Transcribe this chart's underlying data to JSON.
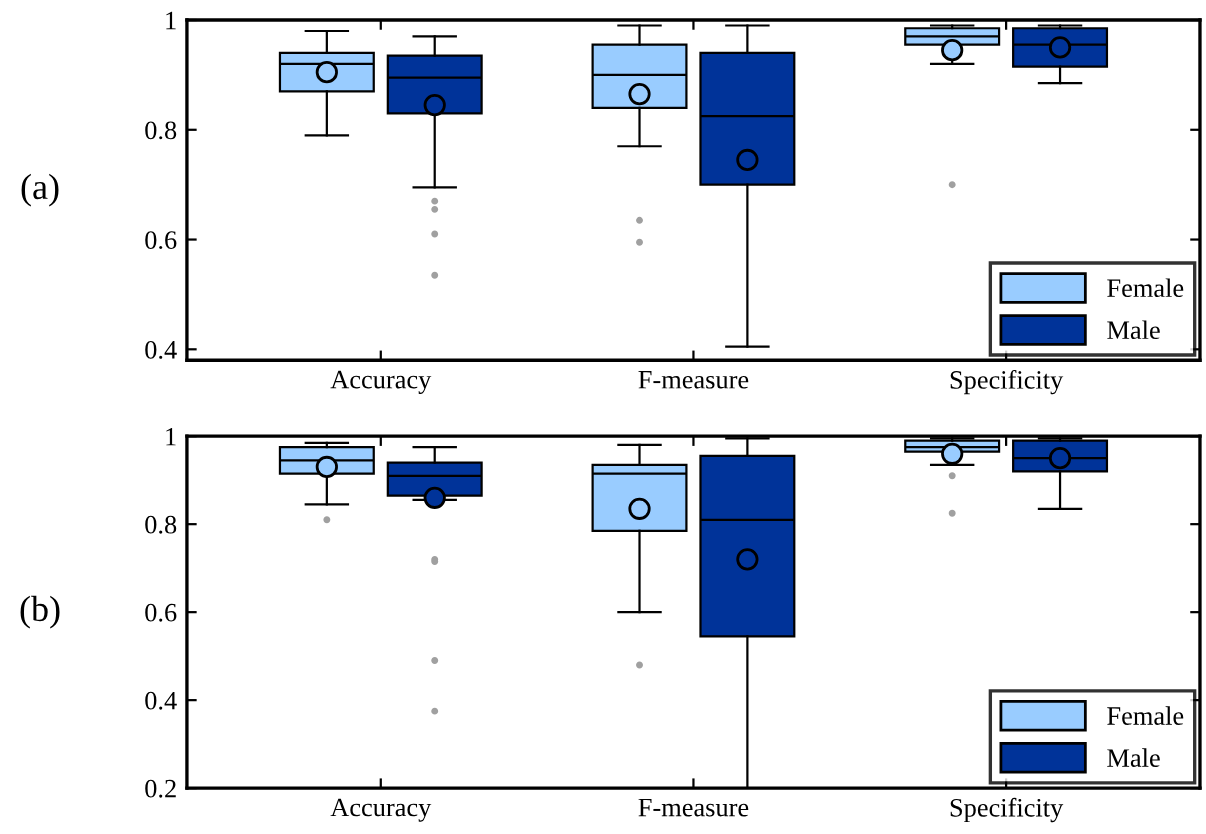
{
  "chart_data": [
    {
      "type": "box",
      "categories": [
        "Accuracy",
        "F-measure",
        "Specificity"
      ],
      "ylim": [
        0.38,
        1
      ],
      "yticks": [
        0.4,
        0.6,
        0.8,
        1
      ],
      "legend": "bottom right",
      "grid": false,
      "annotations": [
        "(a)"
      ],
      "series": [
        {
          "name": "Female",
          "color": "#99ccff",
          "boxes": [
            {
              "low": 0.79,
              "q1": 0.87,
              "median": 0.92,
              "q3": 0.94,
              "high": 0.98,
              "mean": 0.905
            },
            {
              "low": 0.77,
              "q1": 0.84,
              "median": 0.9,
              "q3": 0.955,
              "high": 0.99,
              "mean": 0.865,
              "outliers": [
                0.635,
                0.595
              ]
            },
            {
              "low": 0.92,
              "q1": 0.955,
              "median": 0.97,
              "q3": 0.985,
              "high": 0.99,
              "mean": 0.945,
              "outliers": [
                0.7
              ]
            }
          ]
        },
        {
          "name": "Male",
          "color": "#003399",
          "boxes": [
            {
              "low": 0.695,
              "q1": 0.83,
              "median": 0.895,
              "q3": 0.935,
              "high": 0.97,
              "mean": 0.845,
              "outliers": [
                0.67,
                0.655,
                0.61,
                0.535
              ]
            },
            {
              "low": 0.405,
              "q1": 0.7,
              "median": 0.825,
              "q3": 0.94,
              "high": 0.99,
              "mean": 0.745
            },
            {
              "low": 0.885,
              "q1": 0.915,
              "median": 0.955,
              "q3": 0.985,
              "high": 0.99,
              "mean": 0.95
            }
          ]
        }
      ]
    },
    {
      "type": "box",
      "categories": [
        "Accuracy",
        "F-measure",
        "Specificity"
      ],
      "ylim": [
        0.2,
        1
      ],
      "yticks": [
        0.2,
        0.4,
        0.6,
        0.8,
        1
      ],
      "legend": "bottom right",
      "grid": false,
      "annotations": [
        "(b)"
      ],
      "series": [
        {
          "name": "Female",
          "color": "#99ccff",
          "boxes": [
            {
              "low": 0.845,
              "q1": 0.915,
              "median": 0.945,
              "q3": 0.975,
              "high": 0.985,
              "mean": 0.93,
              "outliers": [
                0.81
              ]
            },
            {
              "low": 0.6,
              "q1": 0.785,
              "median": 0.915,
              "q3": 0.935,
              "high": 0.98,
              "mean": 0.835,
              "outliers": [
                0.48
              ]
            },
            {
              "low": 0.935,
              "q1": 0.965,
              "median": 0.975,
              "q3": 0.99,
              "high": 0.995,
              "mean": 0.96,
              "outliers": [
                0.91,
                0.825
              ]
            }
          ]
        },
        {
          "name": "Male",
          "color": "#003399",
          "boxes": [
            {
              "low": 0.855,
              "q1": 0.865,
              "median": 0.91,
              "q3": 0.94,
              "high": 0.975,
              "mean": 0.86,
              "outliers": [
                0.72,
                0.715,
                0.49,
                0.375
              ]
            },
            {
              "low": 0.2,
              "q1": 0.545,
              "median": 0.81,
              "q3": 0.955,
              "high": 0.995,
              "mean": 0.72
            },
            {
              "low": 0.835,
              "q1": 0.92,
              "median": 0.95,
              "q3": 0.99,
              "high": 0.995,
              "mean": 0.95
            }
          ]
        }
      ]
    }
  ]
}
